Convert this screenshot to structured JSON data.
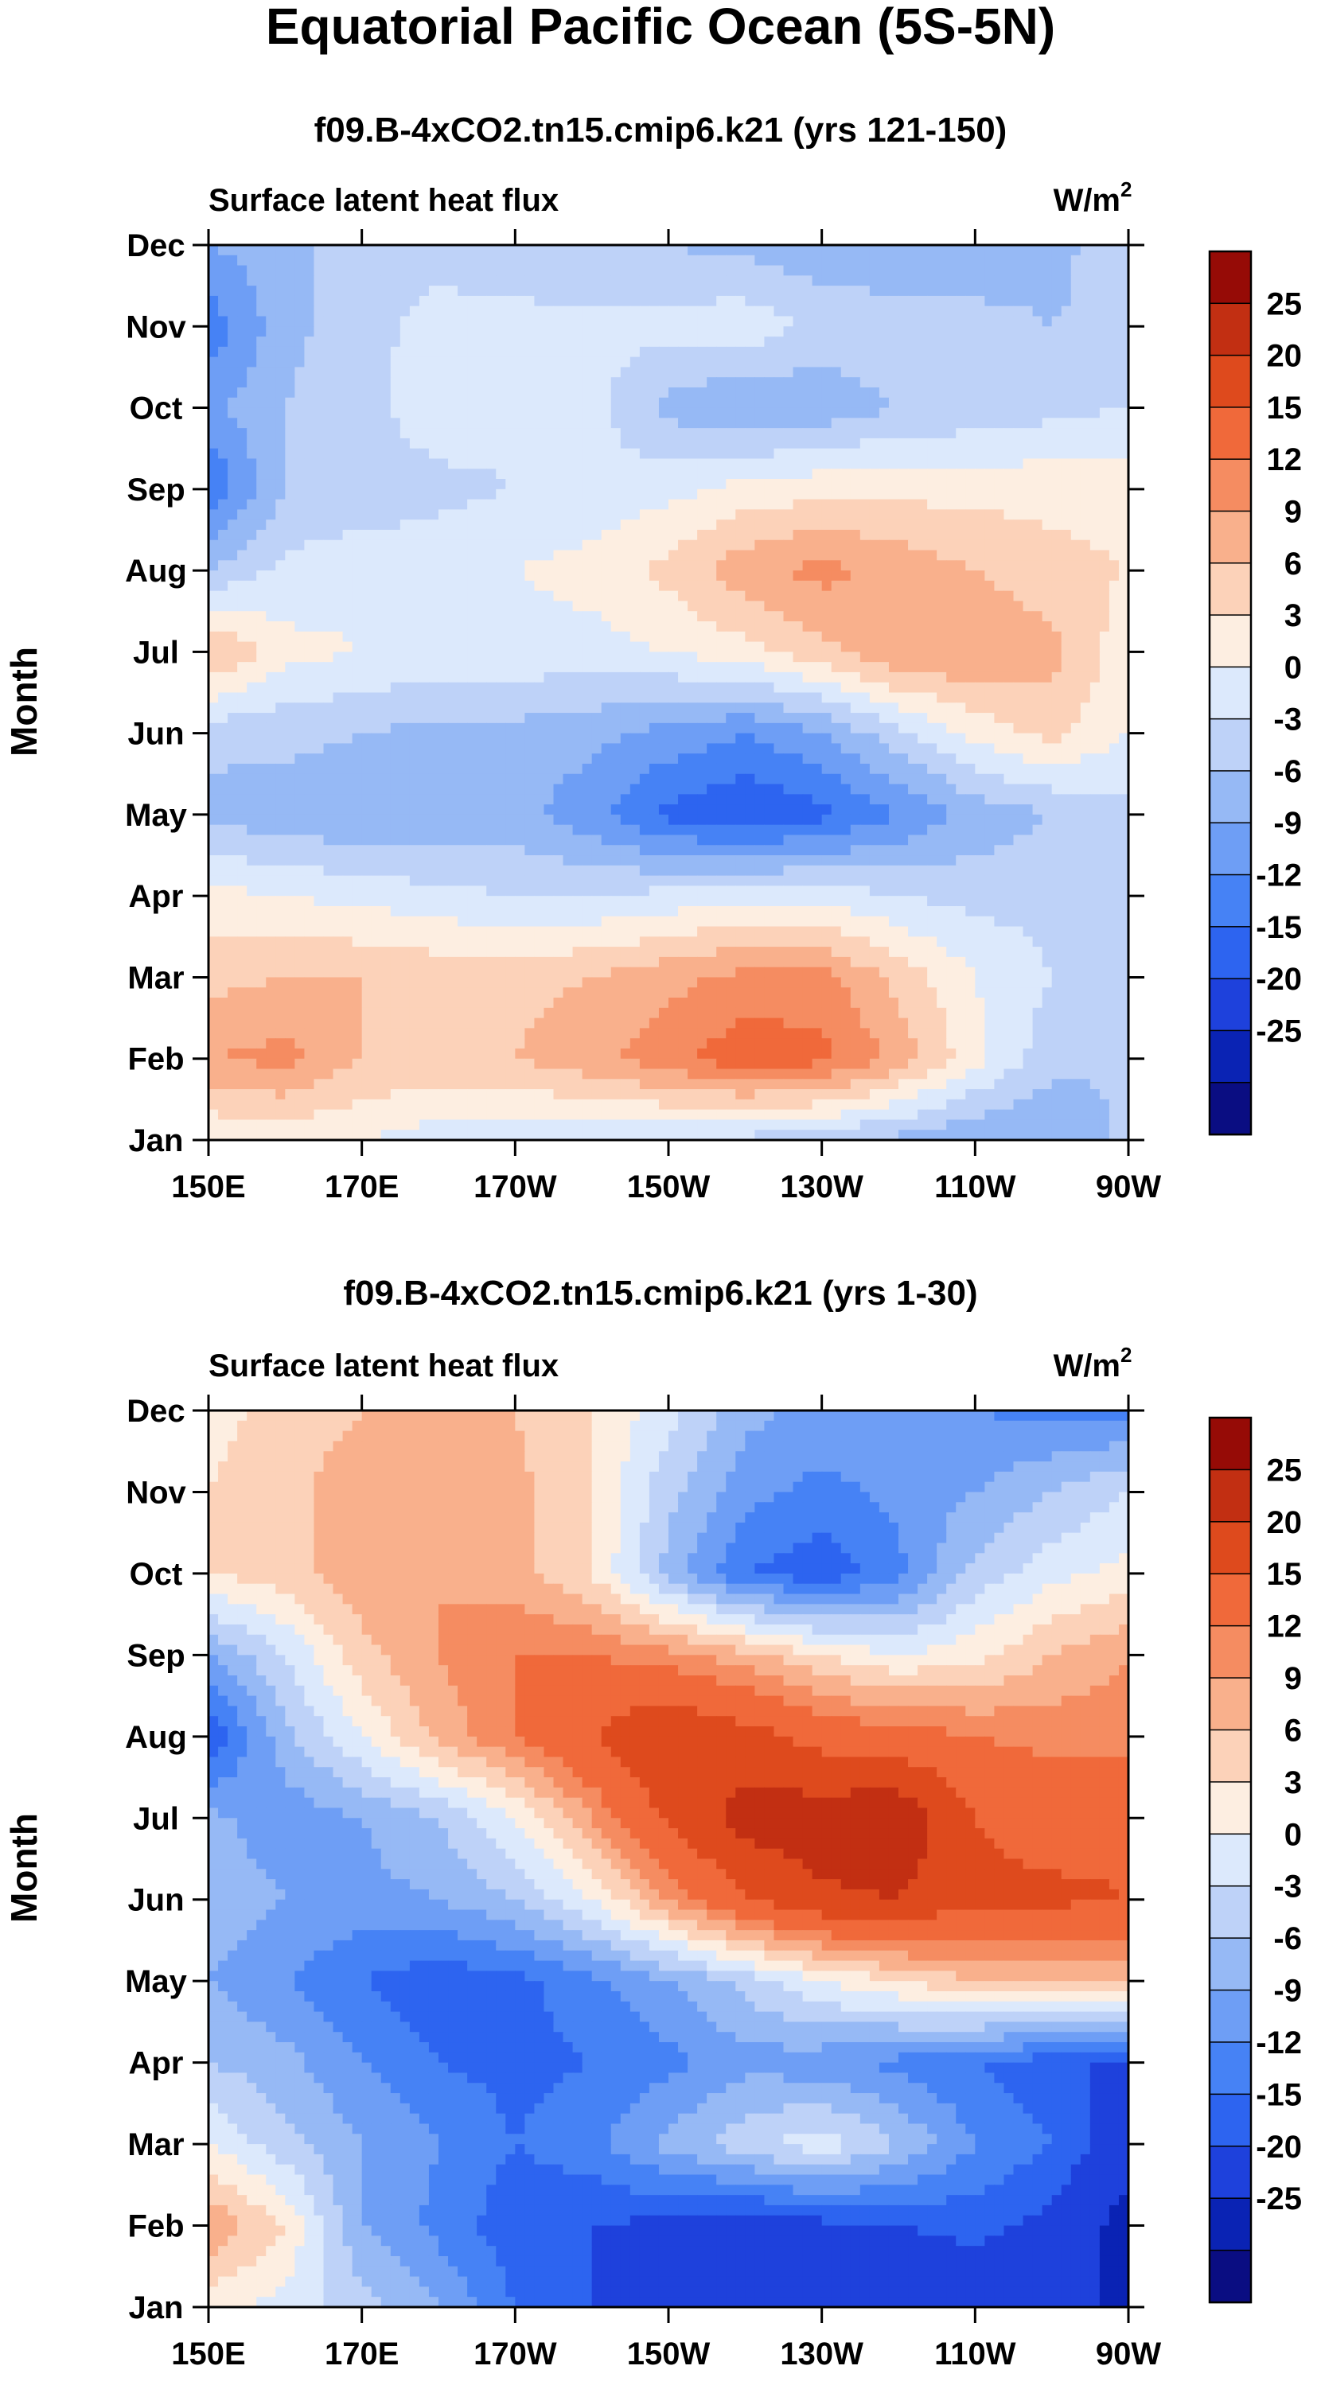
{
  "figure": {
    "title": "Equatorial Pacific Ocean (5S-5N)"
  },
  "colors": {
    "levels": [
      "#0a0d82",
      "#0a23b4",
      "#1e41dc",
      "#2d64f0",
      "#4682f5",
      "#6e9ef5",
      "#96b9f5",
      "#bed2f8",
      "#dce9fc",
      "#fdeee1",
      "#fcd2b9",
      "#f9b08c",
      "#f58c61",
      "#f0693a",
      "#de4a1d",
      "#c22f12",
      "#960b06"
    ],
    "border": "#000000"
  },
  "chart_data": [
    {
      "type": "heatmap",
      "title": "f09.B-4xCO2.tn15.cmip6.k21 (yrs 121-150)",
      "left_label": "Surface latent heat flux",
      "right_label": "W/m",
      "right_label_sup": "2",
      "ylabel": "Month",
      "xlabel": "",
      "x_ticks": [
        "150E",
        "170E",
        "170W",
        "150W",
        "130W",
        "110W",
        "90W"
      ],
      "y_ticks": [
        "Jan",
        "Feb",
        "Mar",
        "Apr",
        "May",
        "Jun",
        "Jul",
        "Aug",
        "Sep",
        "Oct",
        "Nov",
        "Dec"
      ],
      "x_lon_range": [
        150,
        270
      ],
      "levels": [
        -25,
        -20,
        -15,
        -12,
        -9,
        -6,
        -3,
        0,
        3,
        6,
        9,
        12,
        15,
        20,
        25
      ],
      "colorbar_labels": [
        "25",
        "20",
        "15",
        "12",
        "9",
        "6",
        "3",
        "0",
        "-3",
        "-6",
        "-9",
        "-12",
        "-15",
        "-20",
        "-25"
      ],
      "lon_points": [
        150,
        160,
        170,
        180,
        190,
        200,
        210,
        220,
        230,
        240,
        250,
        260,
        270
      ],
      "values": [
        [
          3,
          4,
          3,
          1,
          1,
          1,
          0,
          -1,
          -2,
          -4,
          -6,
          -6,
          -2
        ],
        [
          12,
          13,
          9,
          9,
          9,
          11,
          14,
          17,
          16,
          11,
          4,
          -2,
          -3
        ],
        [
          8,
          9,
          9,
          8,
          8,
          9,
          11,
          13,
          13,
          8,
          3,
          0,
          -1
        ],
        [
          4,
          3,
          2,
          1,
          0,
          0,
          1,
          2,
          2,
          0,
          -1,
          -1,
          -1
        ],
        [
          -4,
          -5,
          -6,
          -6,
          -5,
          -8,
          -13,
          -15,
          -13,
          -9,
          -5,
          -3,
          -1
        ],
        [
          -2,
          -2,
          -3,
          -4,
          -4,
          -5,
          -7,
          -9,
          -6,
          -1,
          4,
          7,
          3
        ],
        [
          10,
          4,
          3,
          2,
          2,
          2,
          3,
          5,
          8,
          12,
          12,
          10,
          4
        ],
        [
          -3,
          1,
          2,
          2,
          3,
          4,
          7,
          11,
          13,
          11,
          9,
          7,
          6
        ],
        [
          -12,
          -3,
          -2,
          -1,
          0,
          1,
          2,
          4,
          5,
          5,
          5,
          5,
          5
        ],
        [
          -7,
          -3,
          -1,
          2,
          1,
          1,
          -4,
          -6,
          -5,
          -3,
          -2,
          -1,
          0
        ],
        [
          -11,
          -4,
          -1,
          1,
          1,
          1,
          1,
          2,
          -1,
          -1,
          -2,
          -3,
          -2
        ],
        [
          -6,
          -4,
          -1,
          -1,
          -2,
          -3,
          -3,
          -4,
          -5,
          -6,
          -5,
          -4,
          -1
        ]
      ]
    },
    {
      "type": "heatmap",
      "title": "f09.B-4xCO2.tn15.cmip6.k21 (yrs 1-30)",
      "left_label": "Surface latent heat flux",
      "right_label": "W/m",
      "right_label_sup": "2",
      "ylabel": "Month",
      "xlabel": "",
      "x_ticks": [
        "150E",
        "170E",
        "170W",
        "150W",
        "130W",
        "110W",
        "90W"
      ],
      "y_ticks": [
        "Jan",
        "Feb",
        "Mar",
        "Apr",
        "May",
        "Jun",
        "Jul",
        "Aug",
        "Sep",
        "Oct",
        "Nov",
        "Dec"
      ],
      "x_lon_range": [
        150,
        270
      ],
      "levels": [
        -25,
        -20,
        -15,
        -12,
        -9,
        -6,
        -3,
        0,
        3,
        6,
        9,
        12,
        15,
        20,
        25
      ],
      "colorbar_labels": [
        "25",
        "20",
        "15",
        "12",
        "9",
        "6",
        "3",
        "0",
        "-3",
        "-6",
        "-9",
        "-12",
        "-15",
        "-20",
        "-25"
      ],
      "lon_points": [
        150,
        160,
        170,
        180,
        190,
        200,
        210,
        220,
        230,
        240,
        250,
        260,
        270
      ],
      "values": [
        [
          4,
          2,
          -2,
          -6,
          -12,
          -15,
          -18,
          -20,
          -20,
          -20,
          -18,
          -18,
          -21
        ],
        [
          12,
          6,
          -6,
          -10,
          -14,
          -15,
          -16,
          -18,
          -16,
          -15,
          -14,
          -16,
          -22
        ],
        [
          3,
          -2,
          -6,
          -9,
          -12,
          -10,
          -5,
          -1,
          2,
          -3,
          -9,
          -12,
          -18
        ],
        [
          -3,
          -5,
          -9,
          -12,
          -13,
          -12,
          -10,
          -7,
          -8,
          -10,
          -12,
          -14,
          -16
        ],
        [
          -6,
          -9,
          -12,
          -14,
          -13,
          -10,
          -6,
          -2,
          3,
          6,
          9,
          9,
          10
        ],
        [
          -4,
          -6,
          -7,
          -6,
          -3,
          3,
          12,
          20,
          24,
          25,
          21,
          21,
          20
        ],
        [
          -5,
          -8,
          -6,
          -3,
          3,
          12,
          21,
          27,
          28,
          29,
          20,
          18,
          19
        ],
        [
          -15,
          -4,
          3,
          10,
          15,
          20,
          25,
          22,
          18,
          17,
          15,
          14,
          14
        ],
        [
          -6,
          0,
          8,
          12,
          15,
          15,
          13,
          10,
          6,
          3,
          5,
          9,
          12
        ],
        [
          6,
          8,
          11,
          12,
          10,
          6,
          -4,
          -12,
          -14,
          -10,
          -2,
          2,
          4
        ],
        [
          6,
          8,
          11,
          12,
          10,
          6,
          -2,
          -8,
          -10,
          -8,
          -6,
          -3,
          0
        ],
        [
          5,
          7,
          9,
          12,
          9,
          6,
          1,
          -5,
          -7,
          -8,
          -9,
          -10,
          -10
        ]
      ]
    }
  ]
}
